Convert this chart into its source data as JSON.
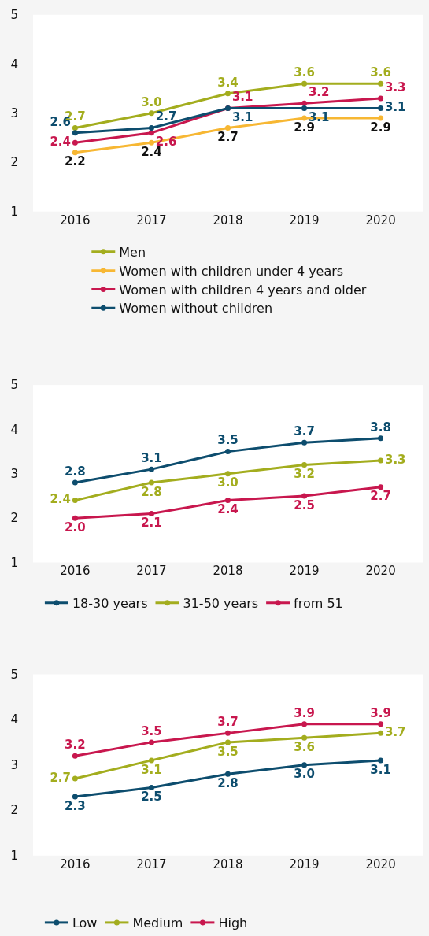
{
  "chart_data": [
    {
      "type": "line",
      "categories": [
        "2016",
        "2017",
        "2018",
        "2019",
        "2020"
      ],
      "ylim": [
        1,
        5
      ],
      "yticks": [
        1,
        2,
        3,
        4,
        5
      ],
      "legend": "bottom",
      "marker": "circle",
      "line_style": "solid",
      "series": [
        {
          "name": "Men",
          "color": "#a3ad1e",
          "values": [
            2.7,
            3.0,
            3.4,
            3.6,
            3.6
          ],
          "value_labels": [
            "2.7",
            "3.0",
            "3.4",
            "3.6",
            "3.6"
          ]
        },
        {
          "name": "Women with children under 4 years",
          "color": "#f7b733",
          "values": [
            2.2,
            2.4,
            2.7,
            2.9,
            2.9
          ],
          "value_labels": [
            "2.2",
            "2.4",
            "2.7",
            "2.9",
            "2.9"
          ]
        },
        {
          "name": "Women with children 4 years and older",
          "color": "#c8174e",
          "values": [
            2.4,
            2.6,
            3.1,
            3.2,
            3.3
          ],
          "value_labels": [
            "2.4",
            "2.6",
            "3.1",
            "3.2",
            "3.3"
          ]
        },
        {
          "name": "Women without children",
          "color": "#0d4d6e",
          "values": [
            2.6,
            2.7,
            3.1,
            3.1,
            3.1
          ],
          "value_labels": [
            "2.6",
            "2.7",
            "3.1",
            "3.1",
            "3.1"
          ]
        }
      ]
    },
    {
      "type": "line",
      "categories": [
        "2016",
        "2017",
        "2018",
        "2019",
        "2020"
      ],
      "ylim": [
        1,
        5
      ],
      "yticks": [
        1,
        2,
        3,
        4,
        5
      ],
      "legend": "bottom",
      "marker": "circle",
      "line_style": "solid",
      "series": [
        {
          "name": "18-30 years",
          "color": "#0d4d6e",
          "values": [
            2.8,
            3.1,
            3.5,
            3.7,
            3.8
          ],
          "value_labels": [
            "2.8",
            "3.1",
            "3.5",
            "3.7",
            "3.8"
          ]
        },
        {
          "name": "31-50 years",
          "color": "#a3ad1e",
          "values": [
            2.4,
            2.8,
            3.0,
            3.2,
            3.3
          ],
          "value_labels": [
            "2.4",
            "2.8",
            "3.0",
            "3.2",
            "3.3"
          ]
        },
        {
          "name": "from 51",
          "color": "#c8174e",
          "values": [
            2.0,
            2.1,
            2.4,
            2.5,
            2.7
          ],
          "value_labels": [
            "2.0",
            "2.1",
            "2.4",
            "2.5",
            "2.7"
          ]
        }
      ]
    },
    {
      "type": "line",
      "categories": [
        "2016",
        "2017",
        "2018",
        "2019",
        "2020"
      ],
      "ylim": [
        1,
        5
      ],
      "yticks": [
        1,
        2,
        3,
        4,
        5
      ],
      "legend": "bottom",
      "marker": "circle",
      "line_style": "solid",
      "series": [
        {
          "name": "Low",
          "color": "#0d4d6e",
          "values": [
            2.3,
            2.5,
            2.8,
            3.0,
            3.1
          ],
          "value_labels": [
            "2.3",
            "2.5",
            "2.8",
            "3.0",
            "3.1"
          ]
        },
        {
          "name": "Medium",
          "color": "#a3ad1e",
          "values": [
            2.7,
            3.1,
            3.5,
            3.6,
            3.7
          ],
          "value_labels": [
            "2.7",
            "3.1",
            "3.5",
            "3.6",
            "3.7"
          ]
        },
        {
          "name": "High",
          "color": "#c8174e",
          "values": [
            3.2,
            3.5,
            3.7,
            3.9,
            3.9
          ],
          "value_labels": [
            "3.2",
            "3.5",
            "3.7",
            "3.9",
            "3.9"
          ]
        }
      ]
    }
  ]
}
